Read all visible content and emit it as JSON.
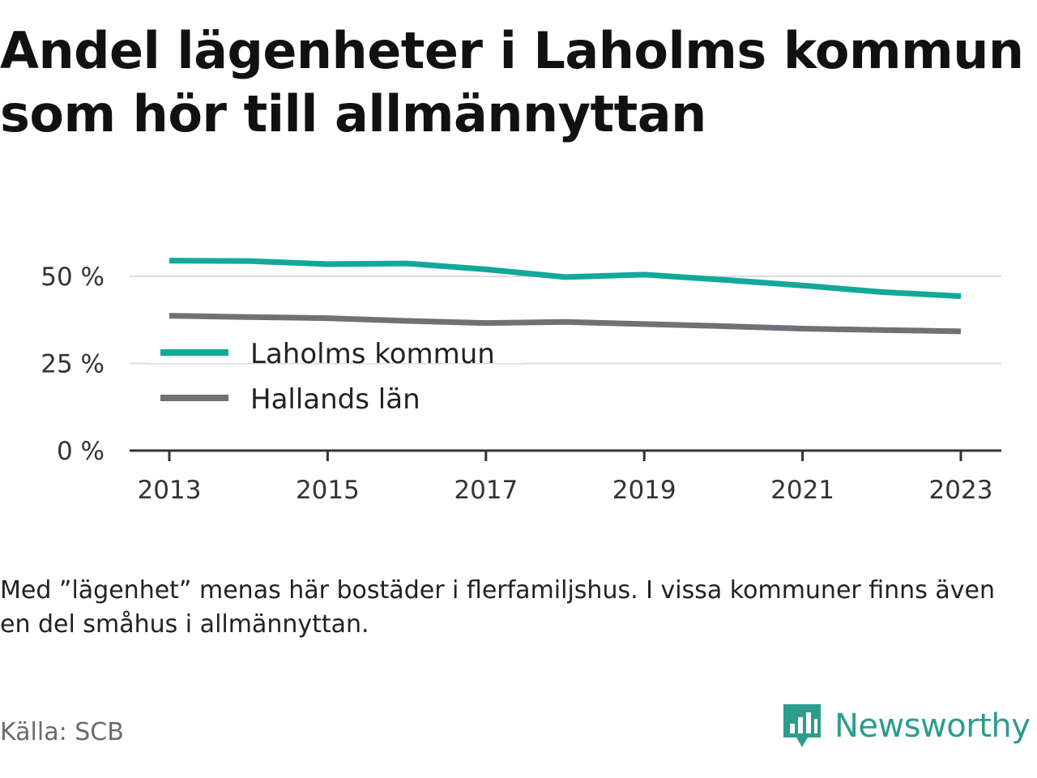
{
  "title": "Andel lägenheter i Laholms kommun som hör till allmännyttan",
  "note": "Med ”lägenhet” menas här bostäder i flerfamiljshus. I vissa kommuner finns även en del småhus i allmännyttan.",
  "source": "Källa: SCB",
  "brand": {
    "name": "Newsworthy",
    "icon": "newsworthy-logo-icon",
    "color": "#2b9d8d"
  },
  "chart_data": {
    "type": "line",
    "x": [
      2013,
      2014,
      2015,
      2016,
      2017,
      2018,
      2019,
      2020,
      2021,
      2022,
      2023
    ],
    "x_ticks": [
      2013,
      2015,
      2017,
      2019,
      2021,
      2023
    ],
    "x_tick_labels": [
      "2013",
      "2015",
      "2017",
      "2019",
      "2021",
      "2023"
    ],
    "y_ticks": [
      0,
      25,
      50
    ],
    "y_tick_labels": [
      "0 %",
      "25 %",
      "50 %"
    ],
    "ylim": [
      0,
      50
    ],
    "xlabel": "",
    "ylabel": "",
    "grid": true,
    "legend_position": "middle-left",
    "series": [
      {
        "name": "Laholms kommun",
        "color": "#12a89a",
        "values": [
          54.5,
          54.4,
          53.5,
          53.7,
          52.0,
          49.8,
          50.5,
          49.0,
          47.4,
          45.5,
          44.3
        ]
      },
      {
        "name": "Hallands län",
        "color": "#707076",
        "values": [
          38.7,
          38.3,
          38.0,
          37.2,
          36.6,
          36.9,
          36.3,
          35.7,
          35.0,
          34.6,
          34.2
        ]
      }
    ]
  }
}
